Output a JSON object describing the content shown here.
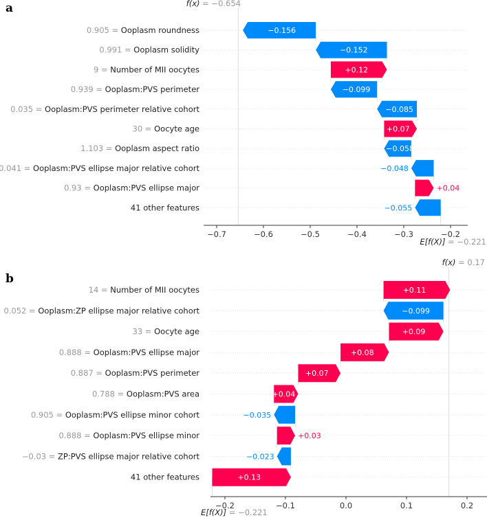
{
  "chart_data": [
    {
      "type": "waterfall",
      "panel_label": "a",
      "base_value": -0.221,
      "base_label": "E[f(X)] = −0.221",
      "output_value": -0.654,
      "output_label": "f(x) = −0.654",
      "xlim": [
        -0.72,
        -0.155
      ],
      "xticks": [
        -0.7,
        -0.6,
        -0.5,
        -0.4,
        -0.3,
        -0.2
      ],
      "xtick_labels": [
        "−0.7",
        "−0.6",
        "−0.5",
        "−0.4",
        "−0.3",
        "−0.2"
      ],
      "colors": {
        "positive": "#ff0051",
        "negative": "#008bfb"
      },
      "features": [
        {
          "value": "0.905",
          "name": "Ooplasm roundness",
          "shap": -0.156,
          "label": "−0.156",
          "label_position": "inside"
        },
        {
          "value": "0.991",
          "name": "Ooplasm solidity",
          "shap": -0.152,
          "label": "−0.152",
          "label_position": "inside"
        },
        {
          "value": "9",
          "name": "Number of MII oocytes",
          "shap": 0.12,
          "label": "+0.12",
          "label_position": "inside"
        },
        {
          "value": "0.939",
          "name": "Ooplasm:PVS perimeter",
          "shap": -0.099,
          "label": "−0.099",
          "label_position": "inside"
        },
        {
          "value": "0.035",
          "name": "Ooplasm:PVS perimeter relative cohort",
          "shap": -0.085,
          "label": "−0.085",
          "label_position": "inside"
        },
        {
          "value": "30",
          "name": "Oocyte age",
          "shap": 0.07,
          "label": "+0.07",
          "label_position": "inside"
        },
        {
          "value": "1.103",
          "name": "Ooplasm aspect ratio",
          "shap": -0.058,
          "label": "−0.058",
          "label_position": "inside"
        },
        {
          "value": "0.041",
          "name": "Ooplasm:PVS ellipse major relative cohort",
          "shap": -0.048,
          "label": "−0.048",
          "label_position": "outside"
        },
        {
          "value": "0.93",
          "name": "Ooplasm:PVS ellipse major",
          "shap": 0.04,
          "label": "+0.04",
          "label_position": "outside"
        },
        {
          "value": "",
          "name": "41 other features",
          "shap": -0.055,
          "label": "−0.055",
          "label_position": "outside"
        }
      ]
    },
    {
      "type": "waterfall",
      "panel_label": "b",
      "base_value": -0.221,
      "base_label": "E[f(X)] = −0.221",
      "output_value": 0.17,
      "output_label": "f(x) = 0.17",
      "xlim": [
        -0.222,
        0.235
      ],
      "xticks": [
        -0.2,
        -0.1,
        0.0,
        0.1,
        0.2
      ],
      "xtick_labels": [
        "−0.2",
        "−0.1",
        "0.0",
        "0.1",
        "0.2"
      ],
      "colors": {
        "positive": "#ff0051",
        "negative": "#008bfb"
      },
      "features": [
        {
          "value": "14",
          "name": "Number of MII oocytes",
          "shap": 0.11,
          "label": "+0.11",
          "label_position": "inside"
        },
        {
          "value": "0.052",
          "name": "Ooplasm:ZP ellipse major relative cohort",
          "shap": -0.099,
          "label": "−0.099",
          "label_position": "inside"
        },
        {
          "value": "33",
          "name": "Oocyte age",
          "shap": 0.09,
          "label": "+0.09",
          "label_position": "inside"
        },
        {
          "value": "0.888",
          "name": "Ooplasm:PVS ellipse major",
          "shap": 0.08,
          "label": "+0.08",
          "label_position": "inside"
        },
        {
          "value": "0.887",
          "name": "Ooplasm:PVS perimeter",
          "shap": 0.07,
          "label": "+0.07",
          "label_position": "inside"
        },
        {
          "value": "0.788",
          "name": "Ooplasm:PVS area",
          "shap": 0.04,
          "label": "+0.04",
          "label_position": "inside"
        },
        {
          "value": "0.905",
          "name": "Ooplasm:PVS ellipse minor cohort",
          "shap": -0.035,
          "label": "−0.035",
          "label_position": "outside"
        },
        {
          "value": "0.888",
          "name": "Ooplasm:PVS ellipse minor",
          "shap": 0.03,
          "label": "+0.03",
          "label_position": "outside"
        },
        {
          "value": "−0.03",
          "name": "ZP:PVS ellipse major relative cohort",
          "shap": -0.023,
          "label": "−0.023",
          "label_position": "outside"
        },
        {
          "value": "",
          "name": "41 other features",
          "shap": 0.13,
          "label": "+0.13",
          "label_position": "inside"
        }
      ]
    }
  ]
}
